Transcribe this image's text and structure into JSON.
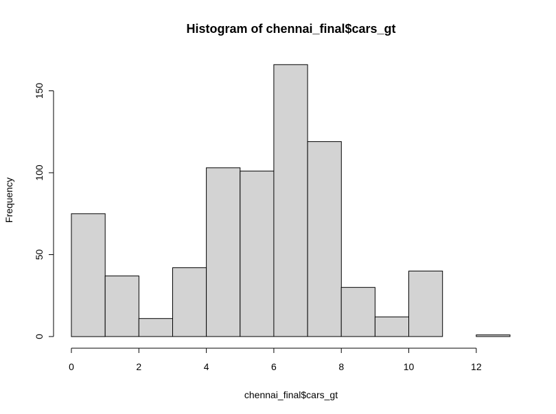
{
  "chart_data": {
    "type": "bar",
    "title": "Histogram of chennai_final$cars_gt",
    "xlabel": "chennai_final$cars_gt",
    "ylabel": "Frequency",
    "bins": [
      {
        "start": 0,
        "end": 1,
        "count": 75
      },
      {
        "start": 1,
        "end": 2,
        "count": 37
      },
      {
        "start": 2,
        "end": 3,
        "count": 11
      },
      {
        "start": 3,
        "end": 4,
        "count": 42
      },
      {
        "start": 4,
        "end": 5,
        "count": 103
      },
      {
        "start": 5,
        "end": 6,
        "count": 101
      },
      {
        "start": 6,
        "end": 7,
        "count": 166
      },
      {
        "start": 7,
        "end": 8,
        "count": 119
      },
      {
        "start": 8,
        "end": 9,
        "count": 30
      },
      {
        "start": 9,
        "end": 10,
        "count": 12
      },
      {
        "start": 10,
        "end": 11,
        "count": 40
      },
      {
        "start": 11,
        "end": 12,
        "count": 0
      },
      {
        "start": 12,
        "end": 13,
        "count": 1
      }
    ],
    "xlim": [
      0,
      13
    ],
    "ylim": [
      0,
      166
    ],
    "x_ticks": [
      0,
      2,
      4,
      6,
      8,
      10,
      12
    ],
    "y_ticks": [
      0,
      50,
      100,
      150
    ],
    "bar_fill": "#d3d3d3",
    "bar_stroke": "#000000",
    "grid": false,
    "legend": "none"
  }
}
